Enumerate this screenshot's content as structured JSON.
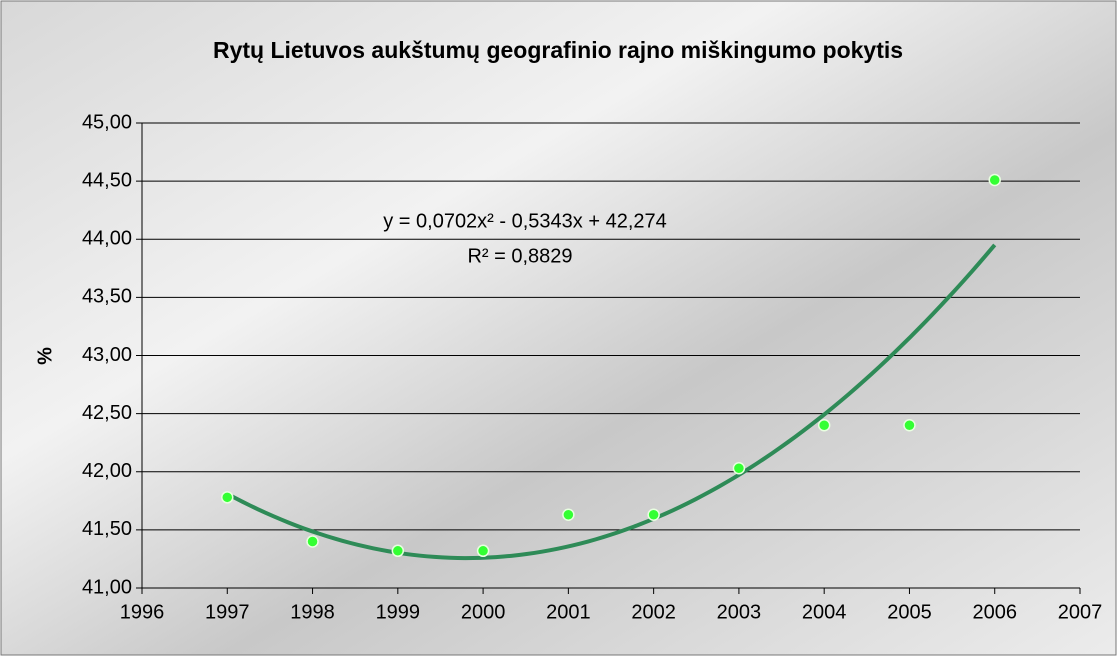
{
  "chart_data": {
    "type": "scatter",
    "title": "Rytų Lietuvos aukštumų geografinio rajno miškingumo pokytis",
    "y_label": "%",
    "x": [
      1997,
      1998,
      1999,
      2000,
      2001,
      2002,
      2003,
      2004,
      2005,
      2006
    ],
    "values": [
      41.78,
      41.4,
      41.32,
      41.32,
      41.63,
      41.63,
      42.03,
      42.4,
      42.4,
      44.51
    ],
    "color": "#33ff33",
    "xlim": [
      1996,
      2007
    ],
    "xticks": [
      1996,
      1997,
      1998,
      1999,
      2000,
      2001,
      2002,
      2003,
      2004,
      2005,
      2006,
      2007
    ],
    "ylim": [
      41,
      45
    ],
    "yticks": [
      {
        "value": 41,
        "label": "41,00"
      },
      {
        "value": 41.5,
        "label": "41,50"
      },
      {
        "value": 42,
        "label": "42,00"
      },
      {
        "value": 42.5,
        "label": "42,50"
      },
      {
        "value": 43,
        "label": "43,00"
      },
      {
        "value": 43.5,
        "label": "43,50"
      },
      {
        "value": 44,
        "label": "44,00"
      },
      {
        "value": 44.5,
        "label": "44,50"
      },
      {
        "value": 45,
        "label": "45,00"
      }
    ],
    "grid": true,
    "trendline": {
      "color": "#2e8b57",
      "coefficients": [
        0.0702,
        -0.5343,
        42.274
      ],
      "equation": "y = 0,0702x² - 0,5343x + 42,274",
      "r_squared": "R² = 0,8829"
    }
  }
}
